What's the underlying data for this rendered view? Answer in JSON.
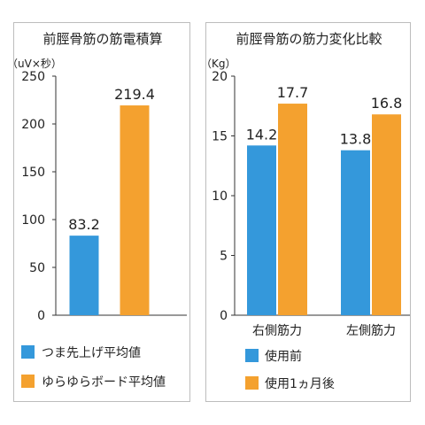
{
  "colors": {
    "blue": "#3498DB",
    "orange": "#F4A12F",
    "axis": "#333333"
  },
  "chart_data": [
    {
      "type": "bar",
      "title": "前脛骨筋の筋電積算",
      "unit": "（uV×秒）",
      "ylim": [
        0,
        250
      ],
      "yticks": [
        "0",
        "50",
        "100",
        "150",
        "200",
        "250"
      ],
      "grid": false,
      "legend_position": "bottom",
      "series": [
        {
          "name": "つま先上げ平均値",
          "values": [
            83.2
          ],
          "labels": [
            "83.2"
          ],
          "color": "#3498DB"
        },
        {
          "name": "ゆらゆらボード平均値",
          "values": [
            219.4
          ],
          "labels": [
            "219.4"
          ],
          "color": "#F4A12F"
        }
      ]
    },
    {
      "type": "bar",
      "title": "前脛骨筋の筋力変化比較",
      "unit": "（Kg）",
      "ylim": [
        0,
        20
      ],
      "yticks": [
        "0",
        "5",
        "10",
        "15",
        "20"
      ],
      "grid": false,
      "legend_position": "bottom",
      "categories": [
        "右側筋力",
        "左側筋力"
      ],
      "series": [
        {
          "name": "使用前",
          "values": [
            14.2,
            13.8
          ],
          "labels": [
            "14.2",
            "13.8"
          ],
          "color": "#3498DB"
        },
        {
          "name": "使用1ヵ月後",
          "values": [
            17.7,
            16.8
          ],
          "labels": [
            "17.7",
            "16.8"
          ],
          "color": "#F4A12F"
        }
      ]
    }
  ]
}
